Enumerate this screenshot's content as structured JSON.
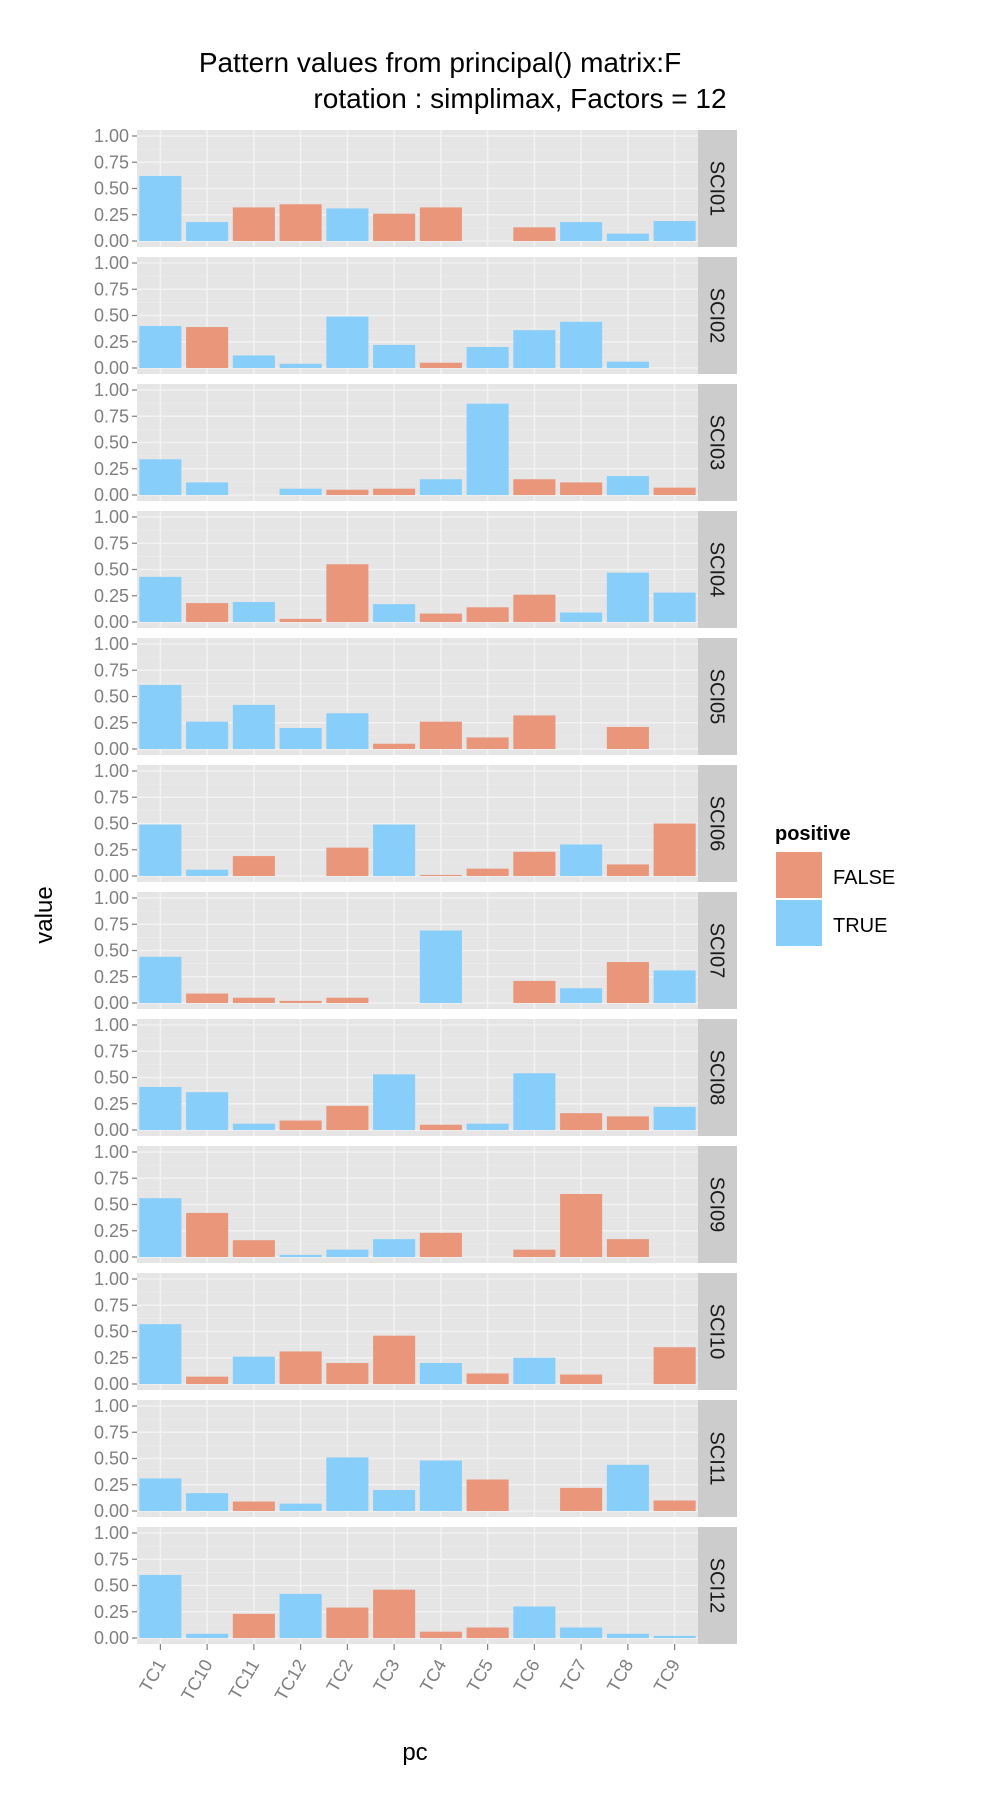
{
  "chart_data": {
    "type": "bar",
    "title": "Pattern values from principal() matrix:F",
    "subtitle": "rotation : simplimax, Factors = 12",
    "xlabel": "pc",
    "ylabel": "value",
    "ylim": [
      0,
      1
    ],
    "y_ticks": [
      "0.00",
      "0.25",
      "0.50",
      "0.75",
      "1.00"
    ],
    "grid": true,
    "legend": {
      "title": "positive",
      "placement": "right",
      "entries": [
        {
          "label": "FALSE",
          "color": "#E9967A"
        },
        {
          "label": "TRUE",
          "color": "#87CEFA"
        }
      ]
    },
    "colors": {
      "FALSE": "#E9967A",
      "TRUE": "#87CEFA",
      "panel_bg": "#E5E5E5",
      "strip_bg": "#CCCCCC",
      "grid": "#F2F2F2"
    },
    "categories": [
      "TC1",
      "TC10",
      "TC11",
      "TC12",
      "TC2",
      "TC3",
      "TC4",
      "TC5",
      "TC6",
      "TC7",
      "TC8",
      "TC9"
    ],
    "panels": [
      {
        "label": "SCI01",
        "values": [
          0.62,
          0.18,
          0.32,
          0.35,
          0.31,
          0.26,
          0.32,
          0.0,
          0.13,
          0.18,
          0.07,
          0.19
        ],
        "positive": [
          true,
          true,
          false,
          false,
          true,
          false,
          false,
          false,
          false,
          true,
          true,
          true
        ]
      },
      {
        "label": "SCI02",
        "values": [
          0.4,
          0.39,
          0.12,
          0.04,
          0.49,
          0.22,
          0.05,
          0.2,
          0.36,
          0.44,
          0.06,
          0.0
        ],
        "positive": [
          true,
          false,
          true,
          true,
          true,
          true,
          false,
          true,
          true,
          true,
          true,
          true
        ]
      },
      {
        "label": "SCI03",
        "values": [
          0.34,
          0.12,
          0.0,
          0.06,
          0.05,
          0.06,
          0.15,
          0.87,
          0.15,
          0.12,
          0.18,
          0.07
        ],
        "positive": [
          true,
          true,
          true,
          true,
          false,
          false,
          true,
          true,
          false,
          false,
          true,
          false
        ]
      },
      {
        "label": "SCI04",
        "values": [
          0.43,
          0.18,
          0.19,
          0.03,
          0.55,
          0.17,
          0.08,
          0.14,
          0.26,
          0.09,
          0.47,
          0.28
        ],
        "positive": [
          true,
          false,
          true,
          false,
          false,
          true,
          false,
          false,
          false,
          true,
          true,
          true
        ]
      },
      {
        "label": "SCI05",
        "values": [
          0.61,
          0.26,
          0.42,
          0.2,
          0.34,
          0.05,
          0.26,
          0.11,
          0.32,
          0.0,
          0.21,
          0.0
        ],
        "positive": [
          true,
          true,
          true,
          true,
          true,
          false,
          false,
          false,
          false,
          true,
          false,
          true
        ]
      },
      {
        "label": "SCI06",
        "values": [
          0.49,
          0.06,
          0.19,
          0.0,
          0.27,
          0.49,
          0.01,
          0.07,
          0.23,
          0.3,
          0.11,
          0.5
        ],
        "positive": [
          true,
          true,
          false,
          true,
          false,
          true,
          false,
          false,
          false,
          true,
          false,
          false
        ]
      },
      {
        "label": "SCI07",
        "values": [
          0.44,
          0.09,
          0.05,
          0.02,
          0.05,
          0.0,
          0.69,
          0.0,
          0.21,
          0.14,
          0.39,
          0.31
        ],
        "positive": [
          true,
          false,
          false,
          false,
          false,
          true,
          true,
          true,
          false,
          true,
          false,
          true
        ]
      },
      {
        "label": "SCI08",
        "values": [
          0.41,
          0.36,
          0.06,
          0.09,
          0.23,
          0.53,
          0.05,
          0.06,
          0.54,
          0.16,
          0.13,
          0.22
        ],
        "positive": [
          true,
          true,
          true,
          false,
          false,
          true,
          false,
          true,
          true,
          false,
          false,
          true
        ]
      },
      {
        "label": "SCI09",
        "values": [
          0.56,
          0.42,
          0.16,
          0.02,
          0.07,
          0.17,
          0.23,
          0.0,
          0.07,
          0.6,
          0.17,
          0.0
        ],
        "positive": [
          true,
          false,
          false,
          true,
          true,
          true,
          false,
          true,
          false,
          false,
          false,
          true
        ]
      },
      {
        "label": "SCI10",
        "values": [
          0.57,
          0.07,
          0.26,
          0.31,
          0.2,
          0.46,
          0.2,
          0.1,
          0.25,
          0.09,
          0.0,
          0.35
        ],
        "positive": [
          true,
          false,
          true,
          false,
          false,
          false,
          true,
          false,
          true,
          false,
          true,
          false
        ]
      },
      {
        "label": "SCI11",
        "values": [
          0.31,
          0.17,
          0.09,
          0.07,
          0.51,
          0.2,
          0.48,
          0.3,
          0.0,
          0.22,
          0.44,
          0.1
        ],
        "positive": [
          true,
          true,
          false,
          true,
          true,
          true,
          true,
          false,
          true,
          false,
          true,
          false
        ]
      },
      {
        "label": "SCI12",
        "values": [
          0.6,
          0.04,
          0.23,
          0.42,
          0.29,
          0.46,
          0.06,
          0.1,
          0.3,
          0.1,
          0.04,
          0.02
        ],
        "positive": [
          true,
          true,
          false,
          true,
          false,
          false,
          false,
          false,
          true,
          true,
          true,
          true
        ]
      }
    ]
  }
}
